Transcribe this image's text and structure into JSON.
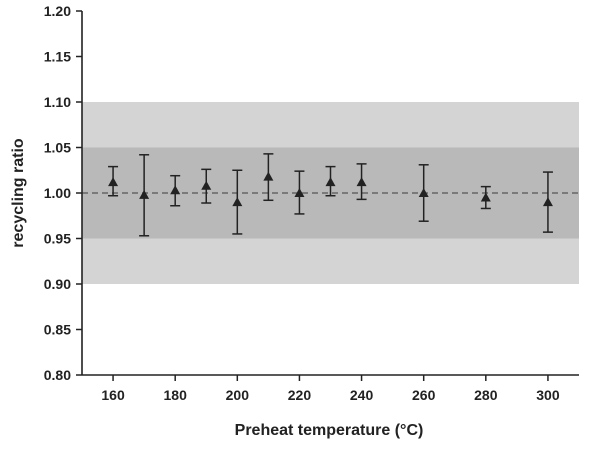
{
  "chart_data": {
    "type": "scatter",
    "title": "",
    "xlabel": "Preheat temperature (°C)",
    "ylabel": "recycling ratio",
    "xlim": [
      150,
      310
    ],
    "ylim": [
      0.8,
      1.2
    ],
    "xticks": [
      160,
      180,
      200,
      220,
      240,
      260,
      280,
      300
    ],
    "xtick_labels": [
      "160",
      "180",
      "200",
      "220",
      "240",
      "260",
      "280",
      "300"
    ],
    "yticks": [
      0.8,
      0.85,
      0.9,
      0.95,
      1.0,
      1.05,
      1.1,
      1.15,
      1.2
    ],
    "ytick_labels": [
      "0.80",
      "0.85",
      "0.90",
      "0.95",
      "1.00",
      "1.05",
      "1.10",
      "1.15",
      "1.20"
    ],
    "grid": false,
    "reference_line": 1.0,
    "bands": [
      {
        "from": 0.9,
        "to": 1.1,
        "color": "#d4d4d4"
      },
      {
        "from": 0.95,
        "to": 1.05,
        "color": "#b9b9b9"
      }
    ],
    "marker": "triangle",
    "colors": {
      "marker": "#222222",
      "axis": "#222222",
      "reference_line": "#555555"
    },
    "series": [
      {
        "x": [
          160,
          170,
          180,
          190,
          200,
          210,
          220,
          230,
          240,
          260,
          280,
          300
        ],
        "y": [
          1.012,
          0.998,
          1.003,
          1.008,
          0.99,
          1.018,
          1.0,
          1.012,
          1.012,
          1.0,
          0.995,
          0.99
        ],
        "yerr_low": [
          0.997,
          0.953,
          0.986,
          0.989,
          0.955,
          0.992,
          0.977,
          0.997,
          0.993,
          0.969,
          0.983,
          0.957
        ],
        "yerr_high": [
          1.029,
          1.042,
          1.019,
          1.026,
          1.025,
          1.043,
          1.024,
          1.029,
          1.032,
          1.031,
          1.007,
          1.023
        ]
      }
    ]
  }
}
